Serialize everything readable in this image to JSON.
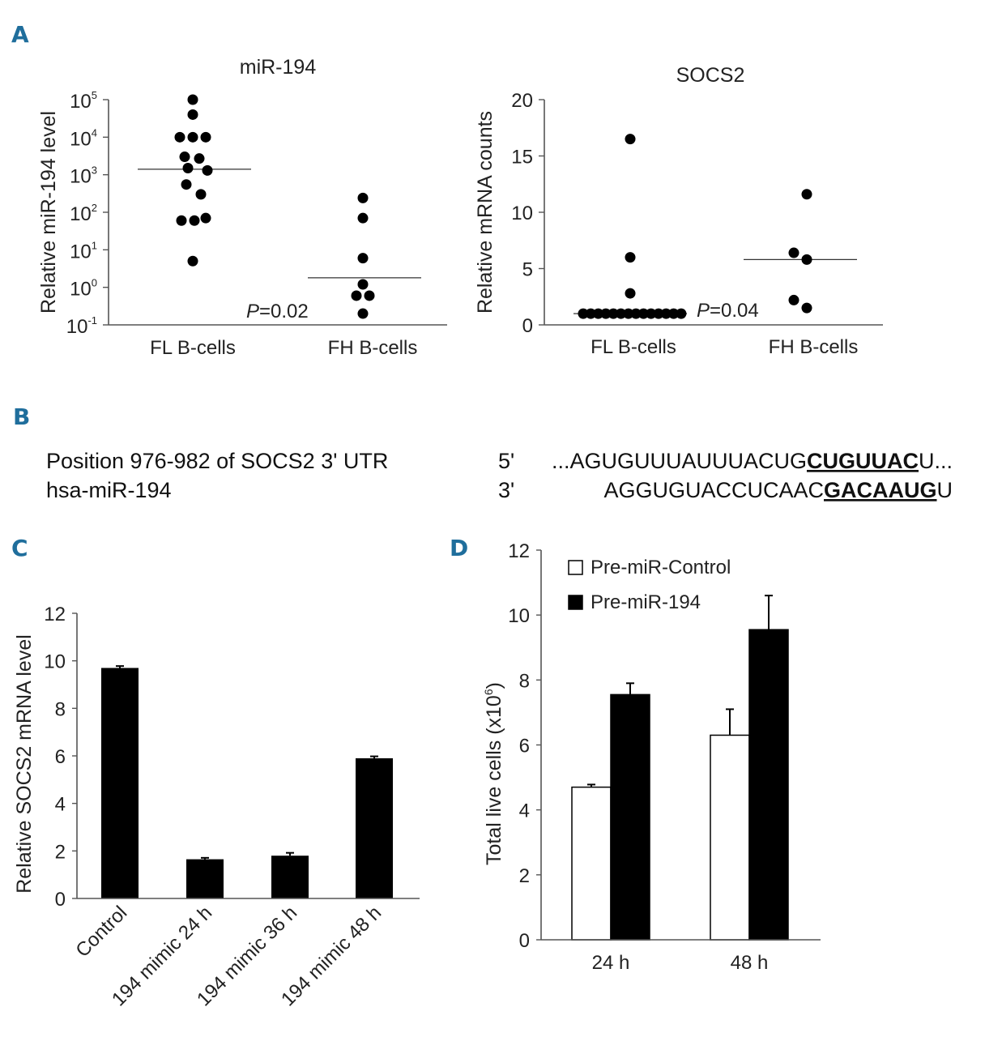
{
  "panels": {
    "A": "A",
    "B": "B",
    "C": "C",
    "D": "D"
  },
  "chart_data": [
    {
      "id": "A1",
      "type": "scatter",
      "title": "miR-194",
      "ylabel": "Relative miR-194 level",
      "yscale": "log",
      "ylim": [
        0.1,
        100000
      ],
      "yticks": [
        {
          "base": "10",
          "exp": "-1"
        },
        {
          "base": "10",
          "exp": "0"
        },
        {
          "base": "10",
          "exp": "1"
        },
        {
          "base": "10",
          "exp": "2"
        },
        {
          "base": "10",
          "exp": "3"
        },
        {
          "base": "10",
          "exp": "4"
        },
        {
          "base": "10",
          "exp": "5"
        }
      ],
      "categories": [
        "FL B-cells",
        "FH B-cells"
      ],
      "points": {
        "FL B-cells": [
          100000,
          40000,
          10000,
          10000,
          10000,
          3000,
          2700,
          1500,
          1300,
          550,
          300,
          70,
          60,
          60,
          5
        ],
        "FH B-cells": [
          240,
          70,
          6,
          1.2,
          0.6,
          0.6,
          0.2
        ]
      },
      "medians": [
        1400,
        1.8
      ],
      "annotation": {
        "p": "P",
        "rest": "=0.02"
      }
    },
    {
      "id": "A2",
      "type": "scatter",
      "title": "SOCS2",
      "ylabel": "Relative mRNA counts",
      "ylim": [
        0,
        20
      ],
      "yticks": [
        "0",
        "5",
        "10",
        "15",
        "20"
      ],
      "categories": [
        "FL B-cells",
        "FH B-cells"
      ],
      "points": {
        "FL B-cells": [
          16.5,
          6,
          2.8,
          1,
          1,
          1,
          1,
          1,
          1,
          1,
          1,
          1,
          1,
          1,
          1,
          1,
          1
        ],
        "FH B-cells": [
          11.6,
          6.4,
          5.8,
          2.2,
          1.5
        ]
      },
      "medians": [
        1,
        5.8
      ],
      "annotation": {
        "p": "P",
        "rest": "=0.04"
      }
    },
    {
      "id": "C",
      "type": "bar",
      "ylabel": "Relative SOCS2 mRNA level",
      "ylim": [
        0,
        12
      ],
      "yticks": [
        "0",
        "2",
        "4",
        "6",
        "8",
        "10",
        "12"
      ],
      "categories": [
        "Control",
        "194 mimic 24 h",
        "194 mimic 36 h",
        "194 mimic 48 h"
      ],
      "values": [
        9.7,
        1.65,
        1.8,
        5.9
      ],
      "errors": [
        0.08,
        0.06,
        0.12,
        0.08
      ],
      "color": "#000000"
    },
    {
      "id": "D",
      "type": "bar",
      "ylabel": "Total live cells (x10",
      "ylabel_exp": "6",
      "ylabel_close": ")",
      "ylim": [
        0,
        12
      ],
      "yticks": [
        "0",
        "2",
        "4",
        "6",
        "8",
        "10",
        "12"
      ],
      "categories": [
        "24 h",
        "48 h"
      ],
      "series": [
        {
          "name": "Pre-miR-Control",
          "values": [
            4.7,
            6.3
          ],
          "errors": [
            0.08,
            0.8
          ],
          "color": "#ffffff"
        },
        {
          "name": "Pre-miR-194",
          "values": [
            7.55,
            9.55
          ],
          "errors": [
            0.35,
            1.05
          ],
          "color": "#000000"
        }
      ],
      "legend": "top-left"
    }
  ],
  "sequence": {
    "left_line1": "Position 976-982 of SOCS2 3' UTR",
    "left_line2": "hsa-miR-194",
    "prime1": "5'",
    "prime2": "3'",
    "line1_pre": "...AGUGUUUAUUUACUG",
    "line1_seed": "CUGUUAC",
    "line1_post": "U...",
    "line2_pre": "AGGUGUACCUCAAC",
    "line2_seed": "GACAAUG",
    "line2_post": "U"
  }
}
